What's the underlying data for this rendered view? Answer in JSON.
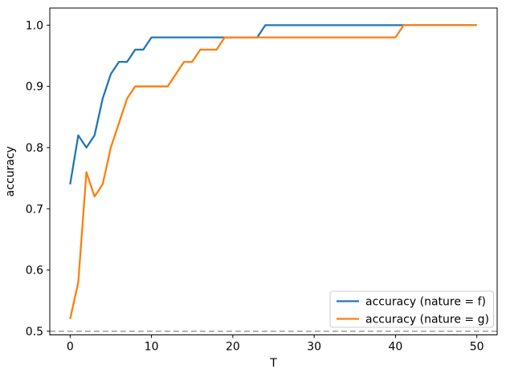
{
  "figure": {
    "background": "#ffffff",
    "text_color": "#000000",
    "spine_color": "#000000"
  },
  "chart_data": {
    "type": "line",
    "title": "",
    "xlabel": "T",
    "ylabel": "accuracy",
    "grid": false,
    "legend_position": "lower right",
    "xlim": [
      -2.5,
      52.5
    ],
    "ylim": [
      0.494,
      1.028
    ],
    "x_tick_values": [
      0,
      10,
      20,
      30,
      40,
      50
    ],
    "x_tick_labels": [
      "0",
      "10",
      "20",
      "30",
      "40",
      "50"
    ],
    "y_tick_values": [
      0.5,
      0.6,
      0.7,
      0.8,
      0.9,
      1.0
    ],
    "y_tick_labels": [
      "0.5",
      "0.6",
      "0.7",
      "0.8",
      "0.9",
      "1.0"
    ],
    "baseline": {
      "y": 0.5,
      "color": "#b0b0b0",
      "style": "dashed"
    },
    "x": [
      0,
      1,
      2,
      3,
      4,
      5,
      6,
      7,
      8,
      9,
      10,
      11,
      12,
      13,
      14,
      15,
      16,
      17,
      18,
      19,
      20,
      21,
      22,
      23,
      24,
      25,
      26,
      27,
      28,
      29,
      30,
      31,
      32,
      33,
      34,
      35,
      36,
      37,
      38,
      39,
      40,
      41,
      42,
      43,
      44,
      45,
      46,
      47,
      48,
      49,
      50
    ],
    "series": [
      {
        "name": "accuracy (nature = f)",
        "color": "#1f77b4",
        "values": [
          0.74,
          0.82,
          0.8,
          0.82,
          0.88,
          0.92,
          0.94,
          0.94,
          0.96,
          0.96,
          0.98,
          0.98,
          0.98,
          0.98,
          0.98,
          0.98,
          0.98,
          0.98,
          0.98,
          0.98,
          0.98,
          0.98,
          0.98,
          0.98,
          1.0,
          1.0,
          1.0,
          1.0,
          1.0,
          1.0,
          1.0,
          1.0,
          1.0,
          1.0,
          1.0,
          1.0,
          1.0,
          1.0,
          1.0,
          1.0,
          1.0,
          1.0,
          1.0,
          1.0,
          1.0,
          1.0,
          1.0,
          1.0,
          1.0,
          1.0,
          1.0
        ]
      },
      {
        "name": "accuracy (nature = g)",
        "color": "#ff7f0e",
        "values": [
          0.52,
          0.58,
          0.76,
          0.72,
          0.74,
          0.8,
          0.84,
          0.88,
          0.9,
          0.9,
          0.9,
          0.9,
          0.9,
          0.92,
          0.94,
          0.94,
          0.96,
          0.96,
          0.96,
          0.98,
          0.98,
          0.98,
          0.98,
          0.98,
          0.98,
          0.98,
          0.98,
          0.98,
          0.98,
          0.98,
          0.98,
          0.98,
          0.98,
          0.98,
          0.98,
          0.98,
          0.98,
          0.98,
          0.98,
          0.98,
          0.98,
          1.0,
          1.0,
          1.0,
          1.0,
          1.0,
          1.0,
          1.0,
          1.0,
          1.0,
          1.0
        ]
      }
    ]
  }
}
